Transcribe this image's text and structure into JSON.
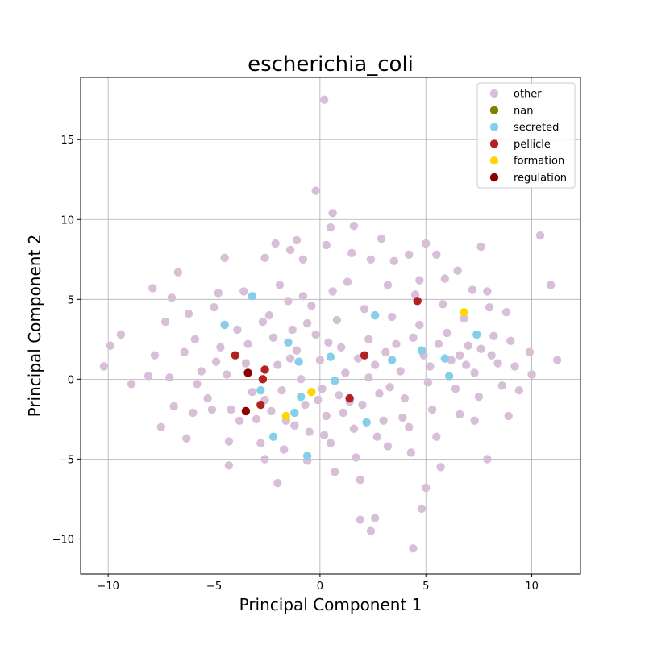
{
  "chart_data": {
    "type": "scatter",
    "title": "escherichia_coli",
    "xlabel": "Principal Component 1",
    "ylabel": "Principal Component 2",
    "xlim": [
      -11.3,
      12.3
    ],
    "ylim": [
      -12.2,
      18.9
    ],
    "xticks": [
      -10,
      -5,
      0,
      5,
      10
    ],
    "yticks": [
      -10,
      -5,
      0,
      5,
      10,
      15
    ],
    "grid": true,
    "legend_position": "top-right",
    "series": [
      {
        "name": "other",
        "color": "#d8bfd8",
        "points": [
          [
            0.2,
            17.5
          ],
          [
            -0.2,
            11.8
          ],
          [
            0.6,
            10.4
          ],
          [
            10.4,
            9.0
          ],
          [
            -2.1,
            8.5
          ],
          [
            5.0,
            8.5
          ],
          [
            7.6,
            8.3
          ],
          [
            1.6,
            9.6
          ],
          [
            0.5,
            9.5
          ],
          [
            -1.1,
            8.7
          ],
          [
            0.3,
            8.4
          ],
          [
            2.9,
            8.8
          ],
          [
            -1.4,
            8.1
          ],
          [
            -4.5,
            7.6
          ],
          [
            -6.7,
            6.7
          ],
          [
            -2.6,
            7.6
          ],
          [
            -0.8,
            7.5
          ],
          [
            1.5,
            7.9
          ],
          [
            2.4,
            7.5
          ],
          [
            3.5,
            7.4
          ],
          [
            4.2,
            7.8
          ],
          [
            5.5,
            7.8
          ],
          [
            6.5,
            6.8
          ],
          [
            10.9,
            5.9
          ],
          [
            -7.9,
            5.7
          ],
          [
            -7.0,
            5.1
          ],
          [
            -4.8,
            5.4
          ],
          [
            -3.6,
            5.5
          ],
          [
            -1.9,
            5.9
          ],
          [
            -0.8,
            5.2
          ],
          [
            1.3,
            6.1
          ],
          [
            3.2,
            5.9
          ],
          [
            4.7,
            6.2
          ],
          [
            5.9,
            6.3
          ],
          [
            7.2,
            5.6
          ],
          [
            7.9,
            5.5
          ],
          [
            -10.2,
            0.8
          ],
          [
            -9.9,
            2.1
          ],
          [
            -9.4,
            2.8
          ],
          [
            -8.9,
            -0.3
          ],
          [
            -8.1,
            0.2
          ],
          [
            -7.8,
            1.5
          ],
          [
            -7.3,
            3.6
          ],
          [
            -7.5,
            -3.0
          ],
          [
            -6.3,
            -3.7
          ],
          [
            -7.1,
            0.1
          ],
          [
            -6.4,
            1.7
          ],
          [
            -6.2,
            4.1
          ],
          [
            -5.9,
            2.5
          ],
          [
            -5.6,
            0.5
          ],
          [
            -5.3,
            -1.2
          ],
          [
            -5.0,
            4.5
          ],
          [
            -4.7,
            2.0
          ],
          [
            -4.4,
            0.3
          ],
          [
            -4.2,
            -1.9
          ],
          [
            -4.3,
            -3.9
          ],
          [
            -4.3,
            -5.4
          ],
          [
            -3.9,
            3.1
          ],
          [
            -3.5,
            1.0
          ],
          [
            -3.2,
            -0.8
          ],
          [
            -3.0,
            -2.5
          ],
          [
            -2.8,
            -4.0
          ],
          [
            -2.6,
            -5.0
          ],
          [
            -2.4,
            4.0
          ],
          [
            -2.2,
            2.6
          ],
          [
            -2.0,
            0.9
          ],
          [
            -1.8,
            -0.7
          ],
          [
            -1.6,
            -2.6
          ],
          [
            -1.7,
            -4.4
          ],
          [
            -2.0,
            -6.5
          ],
          [
            -1.5,
            4.9
          ],
          [
            -1.3,
            3.1
          ],
          [
            -1.1,
            1.8
          ],
          [
            -0.9,
            0.0
          ],
          [
            -0.7,
            -1.6
          ],
          [
            -0.5,
            -3.3
          ],
          [
            -0.6,
            -5.1
          ],
          [
            -0.4,
            4.6
          ],
          [
            -0.2,
            2.8
          ],
          [
            0.0,
            1.2
          ],
          [
            0.1,
            -0.6
          ],
          [
            0.3,
            -2.3
          ],
          [
            0.5,
            -4.0
          ],
          [
            0.7,
            -5.8
          ],
          [
            0.6,
            5.5
          ],
          [
            0.8,
            3.7
          ],
          [
            1.0,
            2.0
          ],
          [
            1.2,
            0.4
          ],
          [
            1.4,
            -1.4
          ],
          [
            1.6,
            -3.1
          ],
          [
            1.7,
            -4.9
          ],
          [
            1.9,
            -6.3
          ],
          [
            1.9,
            -8.8
          ],
          [
            2.4,
            -9.5
          ],
          [
            2.6,
            -8.7
          ],
          [
            4.4,
            -10.6
          ],
          [
            4.8,
            -8.1
          ],
          [
            5.0,
            -6.8
          ],
          [
            5.7,
            -5.5
          ],
          [
            2.1,
            4.4
          ],
          [
            2.3,
            2.5
          ],
          [
            2.6,
            0.9
          ],
          [
            2.8,
            -0.9
          ],
          [
            3.0,
            -2.6
          ],
          [
            3.2,
            -4.2
          ],
          [
            3.4,
            3.9
          ],
          [
            3.6,
            2.2
          ],
          [
            3.8,
            0.5
          ],
          [
            4.0,
            -1.2
          ],
          [
            4.2,
            -3.0
          ],
          [
            4.3,
            -4.6
          ],
          [
            4.5,
            5.3
          ],
          [
            4.7,
            3.4
          ],
          [
            4.9,
            1.5
          ],
          [
            5.1,
            -0.2
          ],
          [
            5.3,
            -1.9
          ],
          [
            5.5,
            -3.6
          ],
          [
            5.8,
            4.7
          ],
          [
            6.0,
            2.9
          ],
          [
            6.2,
            1.2
          ],
          [
            6.4,
            -0.6
          ],
          [
            6.6,
            -2.2
          ],
          [
            6.8,
            3.8
          ],
          [
            7.0,
            2.1
          ],
          [
            7.3,
            0.4
          ],
          [
            7.5,
            -1.1
          ],
          [
            7.3,
            -2.6
          ],
          [
            7.9,
            -5.0
          ],
          [
            8.0,
            4.5
          ],
          [
            8.2,
            2.7
          ],
          [
            8.4,
            1.0
          ],
          [
            8.6,
            -0.4
          ],
          [
            8.8,
            4.2
          ],
          [
            9.0,
            2.4
          ],
          [
            9.2,
            0.8
          ],
          [
            9.4,
            -0.7
          ],
          [
            8.9,
            -2.3
          ],
          [
            9.9,
            1.7
          ],
          [
            10.0,
            0.3
          ],
          [
            11.2,
            1.2
          ],
          [
            -6.9,
            -1.7
          ],
          [
            -6.0,
            -2.1
          ],
          [
            -5.1,
            -1.9
          ],
          [
            -3.8,
            -2.6
          ],
          [
            -2.6,
            -1.3
          ],
          [
            -1.2,
            -2.9
          ],
          [
            0.2,
            -3.5
          ],
          [
            1.1,
            -2.1
          ],
          [
            2.0,
            -1.6
          ],
          [
            2.7,
            -3.6
          ],
          [
            3.9,
            -2.4
          ],
          [
            -3.4,
            2.2
          ],
          [
            -2.7,
            3.6
          ],
          [
            -0.6,
            3.5
          ],
          [
            0.4,
            2.3
          ],
          [
            1.8,
            1.3
          ],
          [
            3.1,
            1.7
          ],
          [
            4.4,
            2.6
          ],
          [
            5.6,
            2.2
          ],
          [
            6.6,
            1.5
          ],
          [
            7.6,
            1.9
          ],
          [
            -4.9,
            1.1
          ],
          [
            -5.8,
            -0.3
          ],
          [
            -1.4,
            1.3
          ],
          [
            0.9,
            -1.0
          ],
          [
            2.3,
            0.1
          ],
          [
            3.3,
            -0.5
          ],
          [
            5.2,
            0.8
          ],
          [
            6.9,
            0.9
          ],
          [
            8.1,
            1.5
          ],
          [
            -2.3,
            -2.0
          ],
          [
            -0.1,
            -1.3
          ]
        ]
      },
      {
        "name": "nan",
        "color": "#808000",
        "points": []
      },
      {
        "name": "secreted",
        "color": "#87ceeb",
        "points": [
          [
            -4.5,
            3.4
          ],
          [
            -3.2,
            5.2
          ],
          [
            2.6,
            4.0
          ],
          [
            7.4,
            2.8
          ],
          [
            -1.5,
            2.3
          ],
          [
            -1.0,
            1.1
          ],
          [
            0.5,
            1.4
          ],
          [
            3.4,
            1.2
          ],
          [
            4.8,
            1.8
          ],
          [
            5.9,
            1.3
          ],
          [
            6.1,
            0.2
          ],
          [
            0.7,
            -0.1
          ],
          [
            -2.8,
            -0.7
          ],
          [
            -0.9,
            -1.1
          ],
          [
            -1.2,
            -2.1
          ],
          [
            2.2,
            -2.7
          ],
          [
            -2.2,
            -3.6
          ],
          [
            -0.6,
            -4.8
          ]
        ]
      },
      {
        "name": "pellicle",
        "color": "#b22222",
        "points": [
          [
            -4.0,
            1.5
          ],
          [
            -2.6,
            0.6
          ],
          [
            -2.7,
            0.0
          ],
          [
            -2.8,
            -1.6
          ],
          [
            1.4,
            -1.2
          ],
          [
            2.1,
            1.5
          ],
          [
            4.6,
            4.9
          ]
        ]
      },
      {
        "name": "formation",
        "color": "#ffd700",
        "points": [
          [
            6.8,
            4.2
          ],
          [
            -0.4,
            -0.8
          ],
          [
            -1.6,
            -2.3
          ]
        ]
      },
      {
        "name": "regulation",
        "color": "#8b0000",
        "points": [
          [
            -3.4,
            0.4
          ],
          [
            -3.5,
            -2.0
          ]
        ]
      }
    ]
  }
}
